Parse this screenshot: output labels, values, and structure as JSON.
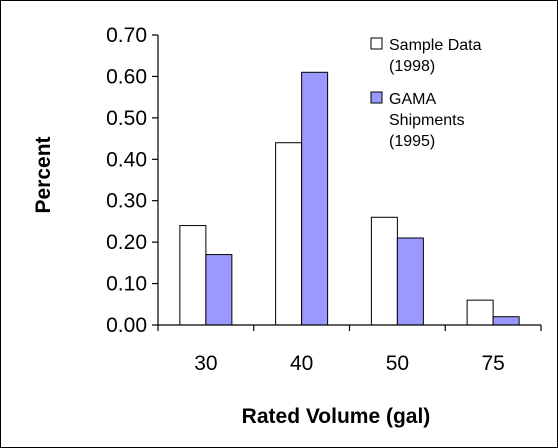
{
  "chart_data": {
    "type": "bar",
    "categories": [
      "30",
      "40",
      "50",
      "75"
    ],
    "series": [
      {
        "name": "Sample Data (1998)",
        "legend_lines": [
          "Sample Data",
          "(1998)"
        ],
        "values": [
          0.24,
          0.44,
          0.26,
          0.06
        ],
        "color": "#ffffff"
      },
      {
        "name": "GAMA Shipments (1995)",
        "legend_lines": [
          "GAMA",
          "Shipments",
          "(1995)"
        ],
        "values": [
          0.17,
          0.61,
          0.21,
          0.02
        ],
        "color": "#9999ff"
      }
    ],
    "yticks": [
      "0.00",
      "0.10",
      "0.20",
      "0.30",
      "0.40",
      "0.50",
      "0.60",
      "0.70"
    ],
    "ylim": [
      0,
      0.7
    ],
    "xlabel": "Rated Volume (gal)",
    "ylabel": "Percent",
    "grid": false,
    "legend_position": "top-right"
  }
}
